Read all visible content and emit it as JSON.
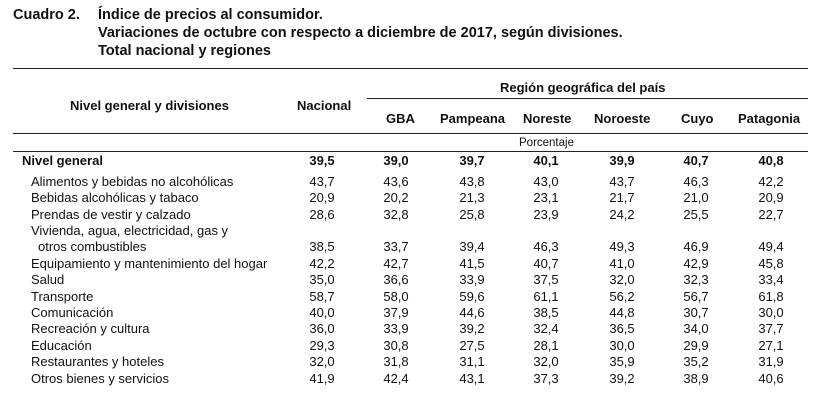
{
  "caption": {
    "number": "Cuadro 2.",
    "lines": [
      "Índice de precios al consumidor.",
      "Variaciones de octubre con respecto a diciembre de 2017, según divisiones.",
      "Total nacional y regiones"
    ]
  },
  "header": {
    "row_label": "Nivel general y divisiones",
    "nacional": "Nacional",
    "region_group": "Región geográfica del país",
    "regions": [
      "GBA",
      "Pampeana",
      "Noreste",
      "Noroeste",
      "Cuyo",
      "Patagonia"
    ],
    "unit": "Porcentaje"
  },
  "rows": [
    {
      "label": "Nivel general",
      "bold": true,
      "values": [
        "39,5",
        "39,0",
        "39,7",
        "40,1",
        "39,9",
        "40,7",
        "40,8"
      ]
    },
    {
      "label": "Alimentos y bebidas no alcohólicas",
      "values": [
        "43,7",
        "43,6",
        "43,8",
        "43,0",
        "43,7",
        "46,3",
        "42,2"
      ]
    },
    {
      "label": "Bebidas alcohólicas y tabaco",
      "values": [
        "20,9",
        "20,2",
        "21,3",
        "23,1",
        "21,7",
        "21,0",
        "20,9"
      ]
    },
    {
      "label": "Prendas de vestir y calzado",
      "values": [
        "28,6",
        "32,8",
        "25,8",
        "23,9",
        "24,2",
        "25,5",
        "22,7"
      ]
    },
    {
      "label": "Vivienda, agua, electricidad, gas y",
      "label2": "otros combustibles",
      "values": [
        "38,5",
        "33,7",
        "39,4",
        "46,3",
        "49,3",
        "46,9",
        "49,4"
      ]
    },
    {
      "label": "Equipamiento y mantenimiento del hogar",
      "values": [
        "42,2",
        "42,7",
        "41,5",
        "40,7",
        "41,0",
        "42,9",
        "45,8"
      ]
    },
    {
      "label": "Salud",
      "values": [
        "35,0",
        "36,6",
        "33,9",
        "37,5",
        "32,0",
        "32,3",
        "33,4"
      ]
    },
    {
      "label": "Transporte",
      "values": [
        "58,7",
        "58,0",
        "59,6",
        "61,1",
        "56,2",
        "56,7",
        "61,8"
      ]
    },
    {
      "label": "Comunicación",
      "values": [
        "40,0",
        "37,9",
        "44,6",
        "38,5",
        "44,8",
        "30,7",
        "30,0"
      ]
    },
    {
      "label": "Recreación y cultura",
      "values": [
        "36,0",
        "33,9",
        "39,2",
        "32,4",
        "36,5",
        "34,0",
        "37,7"
      ]
    },
    {
      "label": "Educación",
      "values": [
        "29,3",
        "30,8",
        "27,5",
        "28,1",
        "30,0",
        "29,9",
        "27,1"
      ]
    },
    {
      "label": "Restaurantes y hoteles",
      "values": [
        "32,0",
        "31,8",
        "31,1",
        "32,0",
        "35,9",
        "35,2",
        "31,9"
      ]
    },
    {
      "label": "Otros bienes y servicios",
      "values": [
        "41,9",
        "42,4",
        "43,1",
        "37,3",
        "39,2",
        "38,9",
        "40,6"
      ]
    }
  ]
}
